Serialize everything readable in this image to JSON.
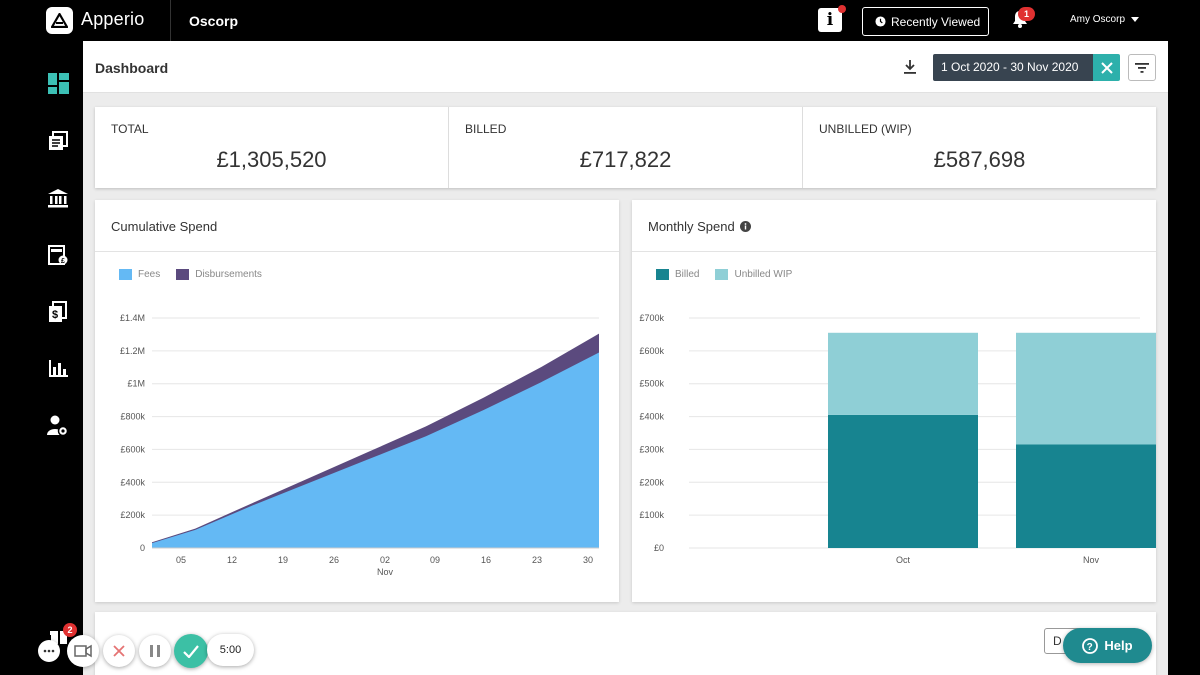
{
  "topbar": {
    "brand": "Apperio",
    "org": "Oscorp",
    "info_label": "i",
    "recent_label": "Recently Viewed",
    "notification_count": "1",
    "user": "Amy Oscorp"
  },
  "sidebar": {
    "items": [
      {
        "icon": "dashboard-icon"
      },
      {
        "icon": "matters-icon"
      },
      {
        "icon": "firms-icon"
      },
      {
        "icon": "budget-icon"
      },
      {
        "icon": "invoices-icon"
      },
      {
        "icon": "reports-icon"
      },
      {
        "icon": "user-settings-icon"
      }
    ],
    "gift_badge": "2"
  },
  "header": {
    "title": "Dashboard",
    "date_range": "1 Oct 2020 - 30 Nov 2020"
  },
  "stats": [
    {
      "label": "TOTAL",
      "value": "£1,305,520"
    },
    {
      "label": "BILLED",
      "value": "£717,822"
    },
    {
      "label": "UNBILLED (WIP)",
      "value": "£587,698"
    }
  ],
  "cumulative": {
    "title": "Cumulative Spend",
    "legend": [
      "Fees",
      "Disbursements"
    ],
    "colors": {
      "fees": "#64b9f4",
      "disbursements": "#5b4a7e"
    }
  },
  "monthly": {
    "title": "Monthly Spend",
    "legend": [
      "Billed",
      "Unbilled WIP"
    ],
    "colors": {
      "billed": "#178490",
      "unbilled": "#8fcfd6"
    }
  },
  "chart_data": [
    {
      "type": "area",
      "title": "Cumulative Spend",
      "x_ticks": [
        "05",
        "12",
        "19",
        "26",
        "02",
        "09",
        "16",
        "23",
        "30"
      ],
      "x_month_label": "Nov",
      "y_ticks": [
        "0",
        "£200k",
        "£400k",
        "£600k",
        "£800k",
        "£1M",
        "£1.2M",
        "£1.4M"
      ],
      "ylim": [
        0,
        1400000
      ],
      "x_range_days": [
        0,
        31
      ],
      "series": [
        {
          "name": "Fees",
          "x": [
            0,
            3,
            7,
            11,
            15,
            19,
            23,
            27,
            31
          ],
          "values": [
            30000,
            110000,
            260000,
            400000,
            540000,
            680000,
            840000,
            1010000,
            1190000
          ]
        },
        {
          "name": "Disbursements",
          "x": [
            0,
            3,
            7,
            11,
            15,
            19,
            23,
            27,
            31
          ],
          "values": [
            5000,
            8000,
            15000,
            30000,
            45000,
            60000,
            75000,
            92000,
            115000
          ]
        }
      ]
    },
    {
      "type": "bar",
      "title": "Monthly Spend",
      "categories": [
        "Oct",
        "Nov"
      ],
      "y_ticks": [
        "£0",
        "£100k",
        "£200k",
        "£300k",
        "£400k",
        "£500k",
        "£600k",
        "£700k"
      ],
      "ylim": [
        0,
        700000
      ],
      "series": [
        {
          "name": "Billed",
          "values": [
            405000,
            315000
          ]
        },
        {
          "name": "Unbilled WIP",
          "values": [
            250000,
            340000
          ]
        }
      ]
    }
  ],
  "bottom": {
    "button_label": "D"
  },
  "recorder": {
    "timer": "5:00"
  },
  "help": {
    "label": "Help"
  }
}
